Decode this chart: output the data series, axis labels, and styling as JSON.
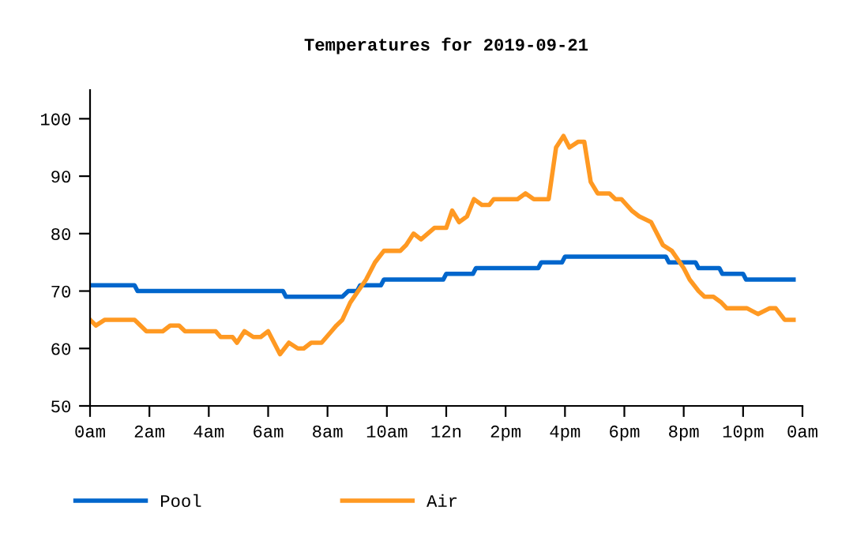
{
  "chart_data": {
    "type": "line",
    "title": "Temperatures for 2019-09-21",
    "xlim": [
      "2019-09-21T00:00",
      "2019-09-22T00:00"
    ],
    "xticks": [
      {
        "value": "2019-09-21T00:00",
        "label": "0am"
      },
      {
        "value": "2019-09-21T02:00",
        "label": "2am"
      },
      {
        "value": "2019-09-21T04:00",
        "label": "4am"
      },
      {
        "value": "2019-09-21T06:00",
        "label": "6am"
      },
      {
        "value": "2019-09-21T08:00",
        "label": "8am"
      },
      {
        "value": "2019-09-21T10:00",
        "label": "10am"
      },
      {
        "value": "2019-09-21T12:00",
        "label": "12n"
      },
      {
        "value": "2019-09-21T14:00",
        "label": "2pm"
      },
      {
        "value": "2019-09-21T16:00",
        "label": "4pm"
      },
      {
        "value": "2019-09-21T18:00",
        "label": "6pm"
      },
      {
        "value": "2019-09-21T20:00",
        "label": "8pm"
      },
      {
        "value": "2019-09-21T22:00",
        "label": "10pm"
      },
      {
        "value": "2019-09-22T00:00",
        "label": "0am"
      }
    ],
    "ylim": [
      50,
      105
    ],
    "yticks": [
      50,
      60,
      70,
      80,
      90,
      100
    ],
    "grid": false,
    "legend": "bottom",
    "marker": "none",
    "line_style": "solid",
    "series": [
      {
        "name": "Pool",
        "color": "#0066cc",
        "x": [
          "2019-09-21T00:00",
          "2019-09-21T01:30",
          "2019-09-21T01:36",
          "2019-09-21T06:30",
          "2019-09-21T06:36",
          "2019-09-21T08:30",
          "2019-09-21T08:42",
          "2019-09-21T09:00",
          "2019-09-21T09:06",
          "2019-09-21T09:48",
          "2019-09-21T09:54",
          "2019-09-21T11:54",
          "2019-09-21T12:00",
          "2019-09-21T12:54",
          "2019-09-21T13:00",
          "2019-09-21T15:06",
          "2019-09-21T15:12",
          "2019-09-21T15:54",
          "2019-09-21T16:00",
          "2019-09-21T19:24",
          "2019-09-21T19:30",
          "2019-09-21T20:24",
          "2019-09-21T20:30",
          "2019-09-21T21:12",
          "2019-09-21T21:18",
          "2019-09-21T22:00",
          "2019-09-21T22:06",
          "2019-09-21T23:42"
        ],
        "values": [
          71,
          71,
          70,
          70,
          69,
          69,
          70,
          70,
          71,
          71,
          72,
          72,
          73,
          73,
          74,
          74,
          75,
          75,
          76,
          76,
          75,
          75,
          74,
          74,
          73,
          73,
          72,
          72
        ]
      },
      {
        "name": "Air",
        "color": "#ff9922",
        "x": [
          "2019-09-21T00:00",
          "2019-09-21T00:12",
          "2019-09-21T00:30",
          "2019-09-21T01:30",
          "2019-09-21T01:54",
          "2019-09-21T02:27",
          "2019-09-21T02:42",
          "2019-09-21T03:00",
          "2019-09-21T03:12",
          "2019-09-21T04:14",
          "2019-09-21T04:24",
          "2019-09-21T04:48",
          "2019-09-21T04:57",
          "2019-09-21T05:12",
          "2019-09-21T05:30",
          "2019-09-21T05:45",
          "2019-09-21T06:00",
          "2019-09-21T06:12",
          "2019-09-21T06:24",
          "2019-09-21T06:42",
          "2019-09-21T07:00",
          "2019-09-21T07:12",
          "2019-09-21T07:27",
          "2019-09-21T07:48",
          "2019-09-21T08:08",
          "2019-09-21T08:18",
          "2019-09-21T08:30",
          "2019-09-21T08:46",
          "2019-09-21T09:02",
          "2019-09-21T09:18",
          "2019-09-21T09:36",
          "2019-09-21T09:54",
          "2019-09-21T10:27",
          "2019-09-21T10:39",
          "2019-09-21T10:54",
          "2019-09-21T11:09",
          "2019-09-21T11:36",
          "2019-09-21T12:00",
          "2019-09-21T12:12",
          "2019-09-21T12:26",
          "2019-09-21T12:42",
          "2019-09-21T12:56",
          "2019-09-21T13:12",
          "2019-09-21T13:27",
          "2019-09-21T13:36",
          "2019-09-21T14:24",
          "2019-09-21T14:40",
          "2019-09-21T14:57",
          "2019-09-21T15:27",
          "2019-09-21T15:42",
          "2019-09-21T15:57",
          "2019-09-21T16:09",
          "2019-09-21T16:27",
          "2019-09-21T16:39",
          "2019-09-21T16:52",
          "2019-09-21T17:06",
          "2019-09-21T17:30",
          "2019-09-21T17:42",
          "2019-09-21T17:54",
          "2019-09-21T18:15",
          "2019-09-21T18:30",
          "2019-09-21T18:54",
          "2019-09-21T19:06",
          "2019-09-21T19:18",
          "2019-09-21T19:36",
          "2019-09-21T20:00",
          "2019-09-21T20:12",
          "2019-09-21T20:30",
          "2019-09-21T20:42",
          "2019-09-21T21:00",
          "2019-09-21T21:16",
          "2019-09-21T21:27",
          "2019-09-21T22:08",
          "2019-09-21T22:30",
          "2019-09-21T22:54",
          "2019-09-21T23:06",
          "2019-09-21T23:24",
          "2019-09-21T23:42"
        ],
        "values": [
          65,
          64,
          65,
          65,
          63,
          63,
          64,
          64,
          63,
          63,
          62,
          62,
          61,
          63,
          62,
          62,
          63,
          61,
          59,
          61,
          60,
          60,
          61,
          61,
          63,
          64,
          65,
          68,
          70,
          72,
          75,
          77,
          77,
          78,
          80,
          79,
          81,
          81,
          84,
          82,
          83,
          86,
          85,
          85,
          86,
          86,
          87,
          86,
          86,
          95,
          97,
          95,
          96,
          96,
          89,
          87,
          87,
          86,
          86,
          84,
          83,
          82,
          80,
          78,
          77,
          74,
          72,
          70,
          69,
          69,
          68,
          67,
          67,
          66,
          67,
          67,
          65,
          65
        ]
      }
    ]
  }
}
